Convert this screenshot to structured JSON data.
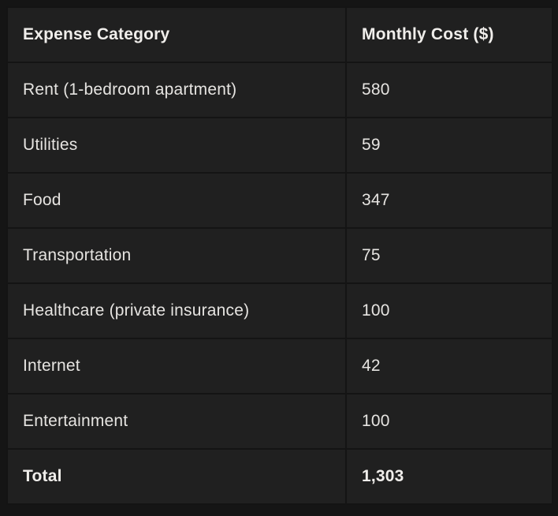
{
  "chart_data": {
    "type": "table",
    "columns": [
      "Expense Category",
      "Monthly Cost ($)"
    ],
    "rows": [
      [
        "Rent (1-bedroom apartment)",
        "580"
      ],
      [
        "Utilities",
        "59"
      ],
      [
        "Food",
        "347"
      ],
      [
        "Transportation",
        "75"
      ],
      [
        "Healthcare (private insurance)",
        "100"
      ],
      [
        "Internet",
        "42"
      ],
      [
        "Entertainment",
        "100"
      ],
      [
        "Total",
        "1,303"
      ]
    ],
    "total_row_index": 7
  },
  "colors": {
    "page_background": "#151515",
    "cell_background": "#202020",
    "grid_line": "#141414",
    "body_text": "#e6e4e1",
    "header_text": "#f0eeeb"
  }
}
